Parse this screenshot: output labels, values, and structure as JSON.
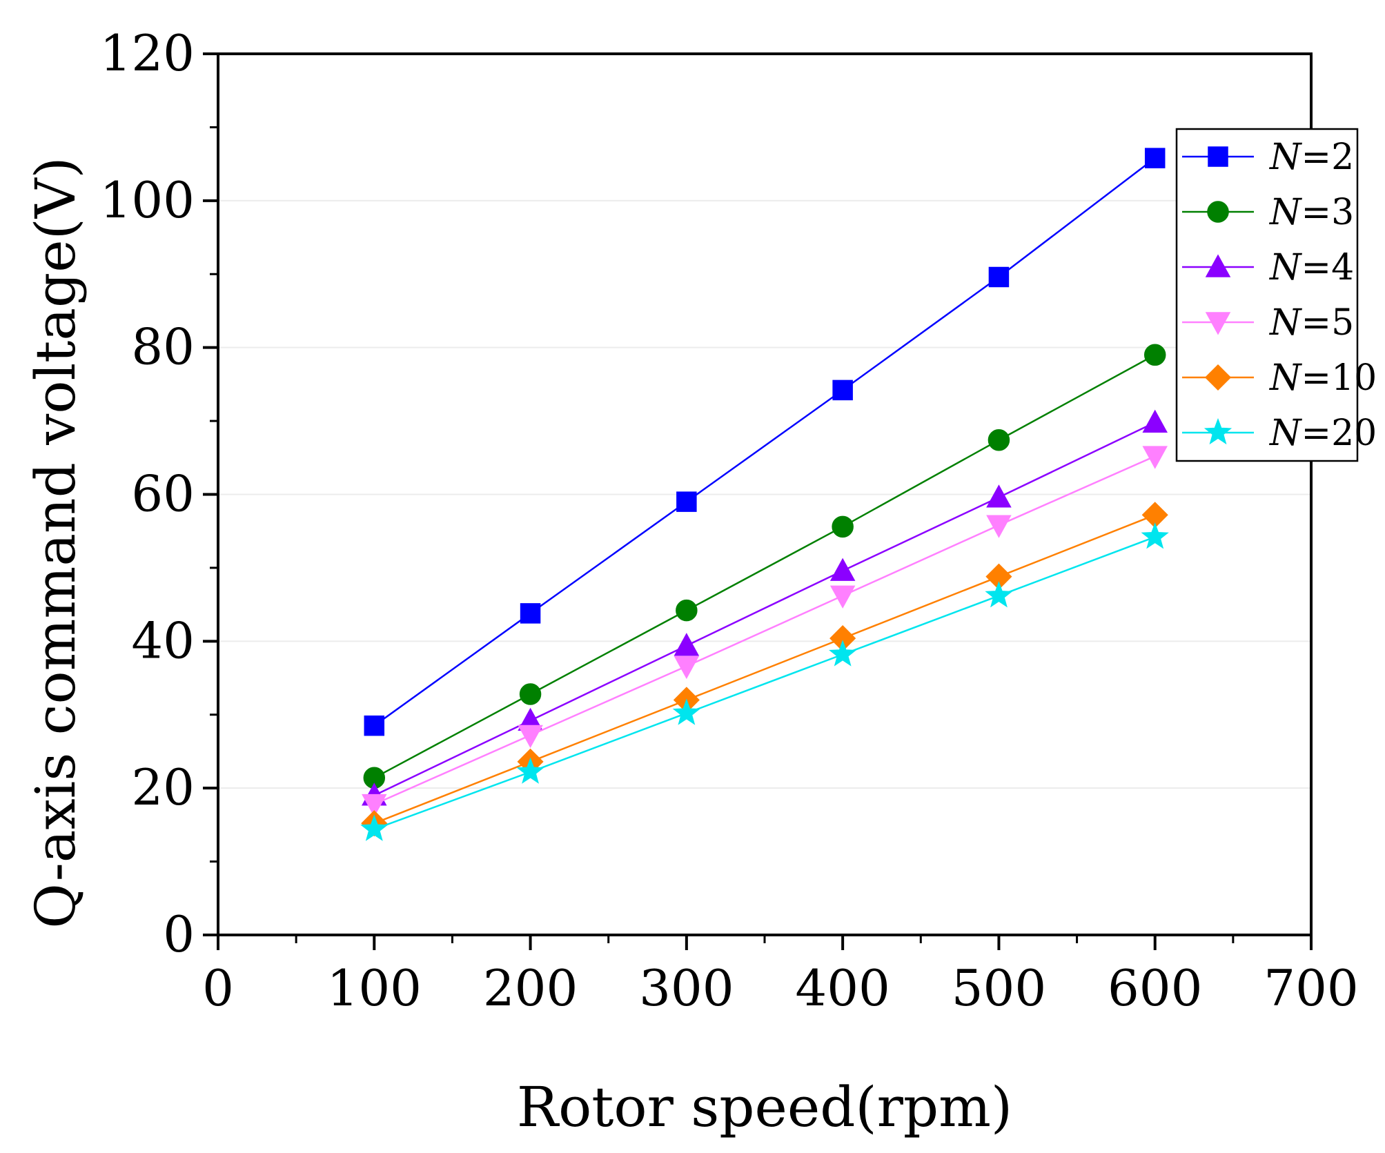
{
  "chart_data": {
    "type": "line",
    "title": "",
    "xlabel": "Rotor speed(rpm)",
    "ylabel": "Q-axis command voltage(V)",
    "xlim": [
      0,
      700
    ],
    "ylim": [
      0,
      120
    ],
    "xticks": [
      0,
      100,
      200,
      300,
      400,
      500,
      600,
      700
    ],
    "yticks": [
      0,
      20,
      40,
      60,
      80,
      100,
      120
    ],
    "grid": true,
    "legend_position": "top-right",
    "x": [
      100,
      200,
      300,
      400,
      500,
      600
    ],
    "series": [
      {
        "name": "N=2",
        "italic": "N",
        "suffix": "=2",
        "marker": "square",
        "color": "#0000ff",
        "values": [
          28.5,
          43.8,
          59.0,
          74.2,
          89.6,
          105.8
        ]
      },
      {
        "name": "N=3",
        "italic": "N",
        "suffix": "=3",
        "marker": "circle",
        "color": "#008000",
        "values": [
          21.4,
          32.8,
          44.2,
          55.6,
          67.4,
          79.0
        ]
      },
      {
        "name": "N=4",
        "italic": "N",
        "suffix": "=4",
        "marker": "triangle-up",
        "color": "#8b00ff",
        "values": [
          19.0,
          29.2,
          39.4,
          49.6,
          59.6,
          69.8
        ]
      },
      {
        "name": "N=5",
        "italic": "N",
        "suffix": "=5",
        "marker": "triangle-down",
        "color": "#ff80ff",
        "values": [
          17.8,
          27.2,
          36.6,
          46.2,
          55.8,
          65.2
        ]
      },
      {
        "name": "N=10",
        "italic": "N",
        "suffix": "=10",
        "marker": "diamond",
        "color": "#ff8000",
        "values": [
          15.2,
          23.6,
          32.0,
          40.4,
          48.8,
          57.2
        ]
      },
      {
        "name": "N=20",
        "italic": "N",
        "suffix": "=20",
        "marker": "star",
        "color": "#00e5ee",
        "values": [
          14.4,
          22.2,
          30.2,
          38.2,
          46.2,
          54.2
        ]
      }
    ]
  }
}
